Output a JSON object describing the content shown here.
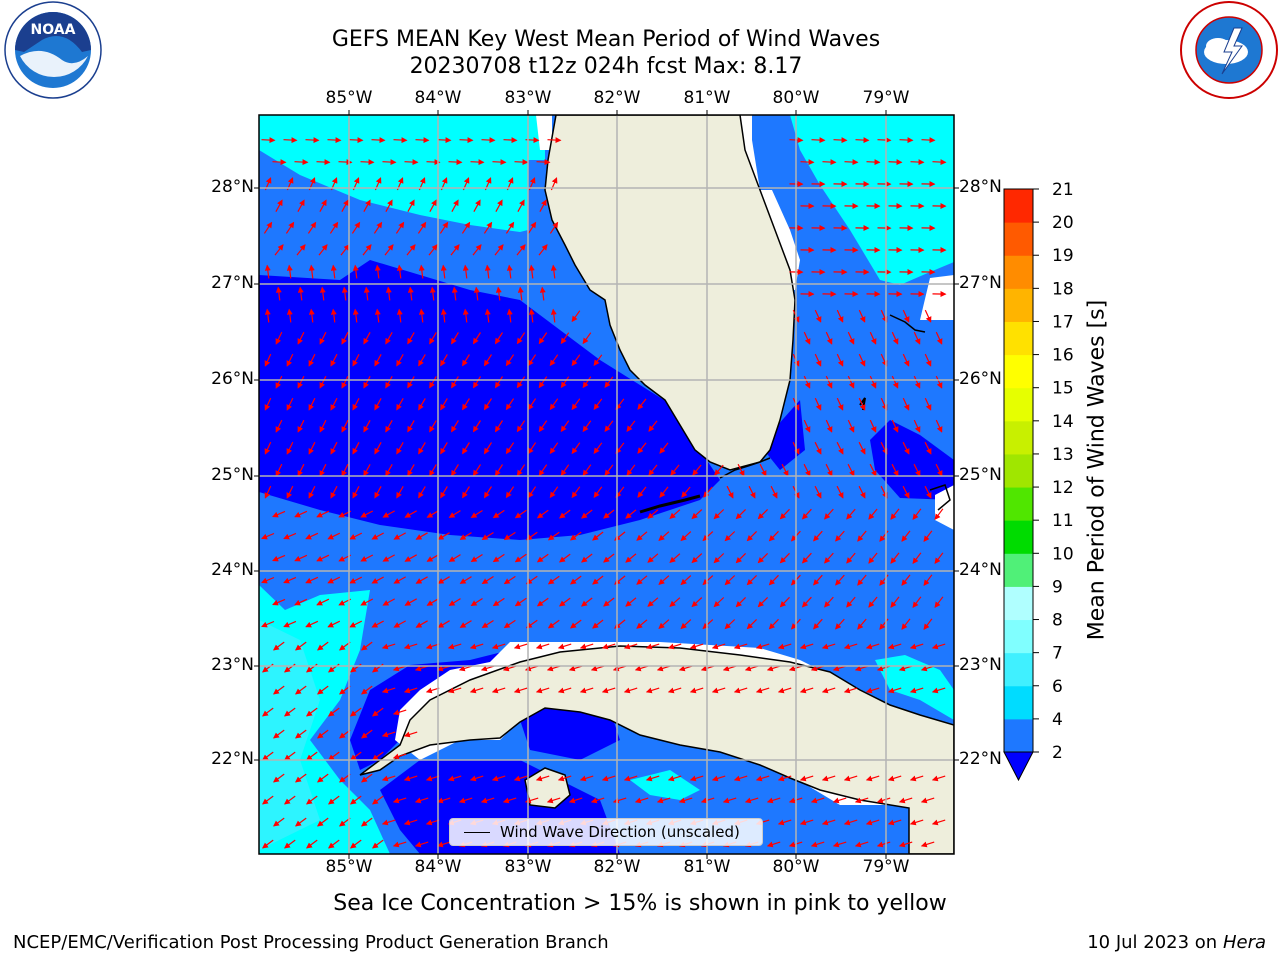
{
  "title_line1": "GEFS MEAN Key West Mean Period of Wind Waves",
  "title_line2": "20230708 t12z 024h fcst   Max: 8.17",
  "lon_labels": [
    "85°W",
    "84°W",
    "83°W",
    "82°W",
    "81°W",
    "80°W",
    "79°W"
  ],
  "lat_labels": [
    "28°N",
    "27°N",
    "26°N",
    "25°N",
    "24°N",
    "23°N",
    "22°N"
  ],
  "legend_label": "Wind Wave Direction (unscaled)",
  "colorbar": {
    "label": "Mean Period of Wind Waves [s]",
    "ticks": [
      "2",
      "4",
      "6",
      "7",
      "8",
      "9",
      "10",
      "11",
      "12",
      "13",
      "14",
      "15",
      "16",
      "17",
      "18",
      "19",
      "20",
      "21"
    ],
    "colors": [
      "#1e78ff",
      "#00dcff",
      "#40f0ff",
      "#80ffff",
      "#b0ffff",
      "#50f078",
      "#00dc00",
      "#50e600",
      "#a0e600",
      "#c8f000",
      "#e6ff00",
      "#ffff00",
      "#ffe100",
      "#ffb400",
      "#ff8c00",
      "#ff5a00",
      "#ff2800",
      "#ff0000"
    ],
    "under_color": "#0000ff"
  },
  "colors": {
    "deep": "#0000ff",
    "mid": "#1e78ff",
    "light": "#00ffff",
    "pale": "#40f0ff",
    "land": "#eeeedc",
    "arrow": "#ff0000",
    "grid": "#b4b4b4"
  },
  "footer": {
    "sea_ice_note": "Sea Ice Concentration > 15% is shown in pink to yellow",
    "credit": "NCEP/EMC/Verification Post Processing Product Generation Branch",
    "date": "10 Jul 2023 on ",
    "host": "Hera"
  },
  "logos": {
    "left": "noaa-logo",
    "left_text": "NOAA",
    "right": "nws-logo"
  }
}
